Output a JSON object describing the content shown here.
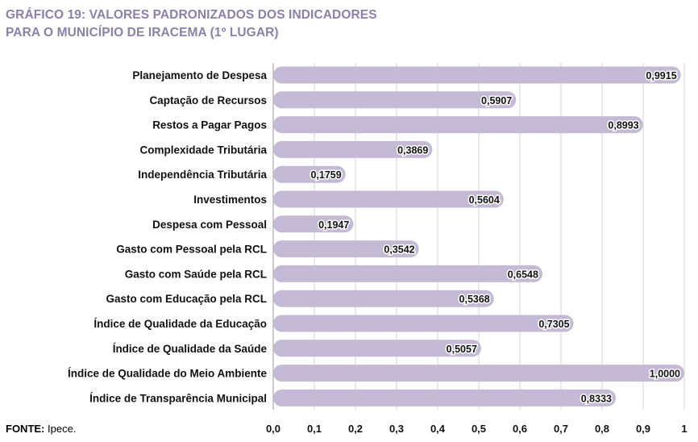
{
  "title_line1": "GRÁFICO 19: VALORES PADRONIZADOS DOS INDICADORES",
  "title_line2": "PARA O MUNICÍPIO DE IRACEMA (1º LUGAR)",
  "source": {
    "label": "FONTE:",
    "text": " Ipece."
  },
  "chart_data": {
    "type": "bar",
    "orientation": "horizontal",
    "title": "GRÁFICO 19: VALORES PADRONIZADOS DOS INDICADORES PARA O MUNICÍPIO DE IRACEMA (1º LUGAR)",
    "categories": [
      "Planejamento de Despesa",
      "Captação de Recursos",
      "Restos a Pagar Pagos",
      "Complexidade Tributária",
      "Independência Tributária",
      "Investimentos",
      "Despesa com Pessoal",
      "Gasto com Pessoal pela RCL",
      "Gasto com Saúde pela RCL",
      "Gasto com Educação pela RCL",
      "Índice de Qualidade da Educação",
      "Índice de Qualidade da Saúde",
      "Índice de Qualidade do Meio Ambiente",
      "Índice de Transparência Municipal"
    ],
    "values": [
      0.9915,
      0.5907,
      0.8993,
      0.3869,
      0.1759,
      0.5604,
      0.1947,
      0.3542,
      0.6548,
      0.5368,
      0.7305,
      0.5057,
      1.0,
      0.8333
    ],
    "value_labels": [
      "0,9915",
      "0,5907",
      "0,8993",
      "0,3869",
      "0,1759",
      "0,5604",
      "0,1947",
      "0,3542",
      "0,6548",
      "0,5368",
      "0,7305",
      "0,5057",
      "1,0000",
      "0,8333"
    ],
    "xlim": [
      0,
      1
    ],
    "x_ticks": [
      0,
      0.1,
      0.2,
      0.3,
      0.4,
      0.5,
      0.6,
      0.7,
      0.8,
      0.9,
      1
    ],
    "x_tick_labels": [
      "0,0",
      "0,1",
      "0,2",
      "0,3",
      "0,4",
      "0,5",
      "0,6",
      "0,7",
      "0,8",
      "0,9",
      "1"
    ],
    "grid": true,
    "bar_color": "#c4bad6",
    "title_color": "#8c80a9"
  }
}
